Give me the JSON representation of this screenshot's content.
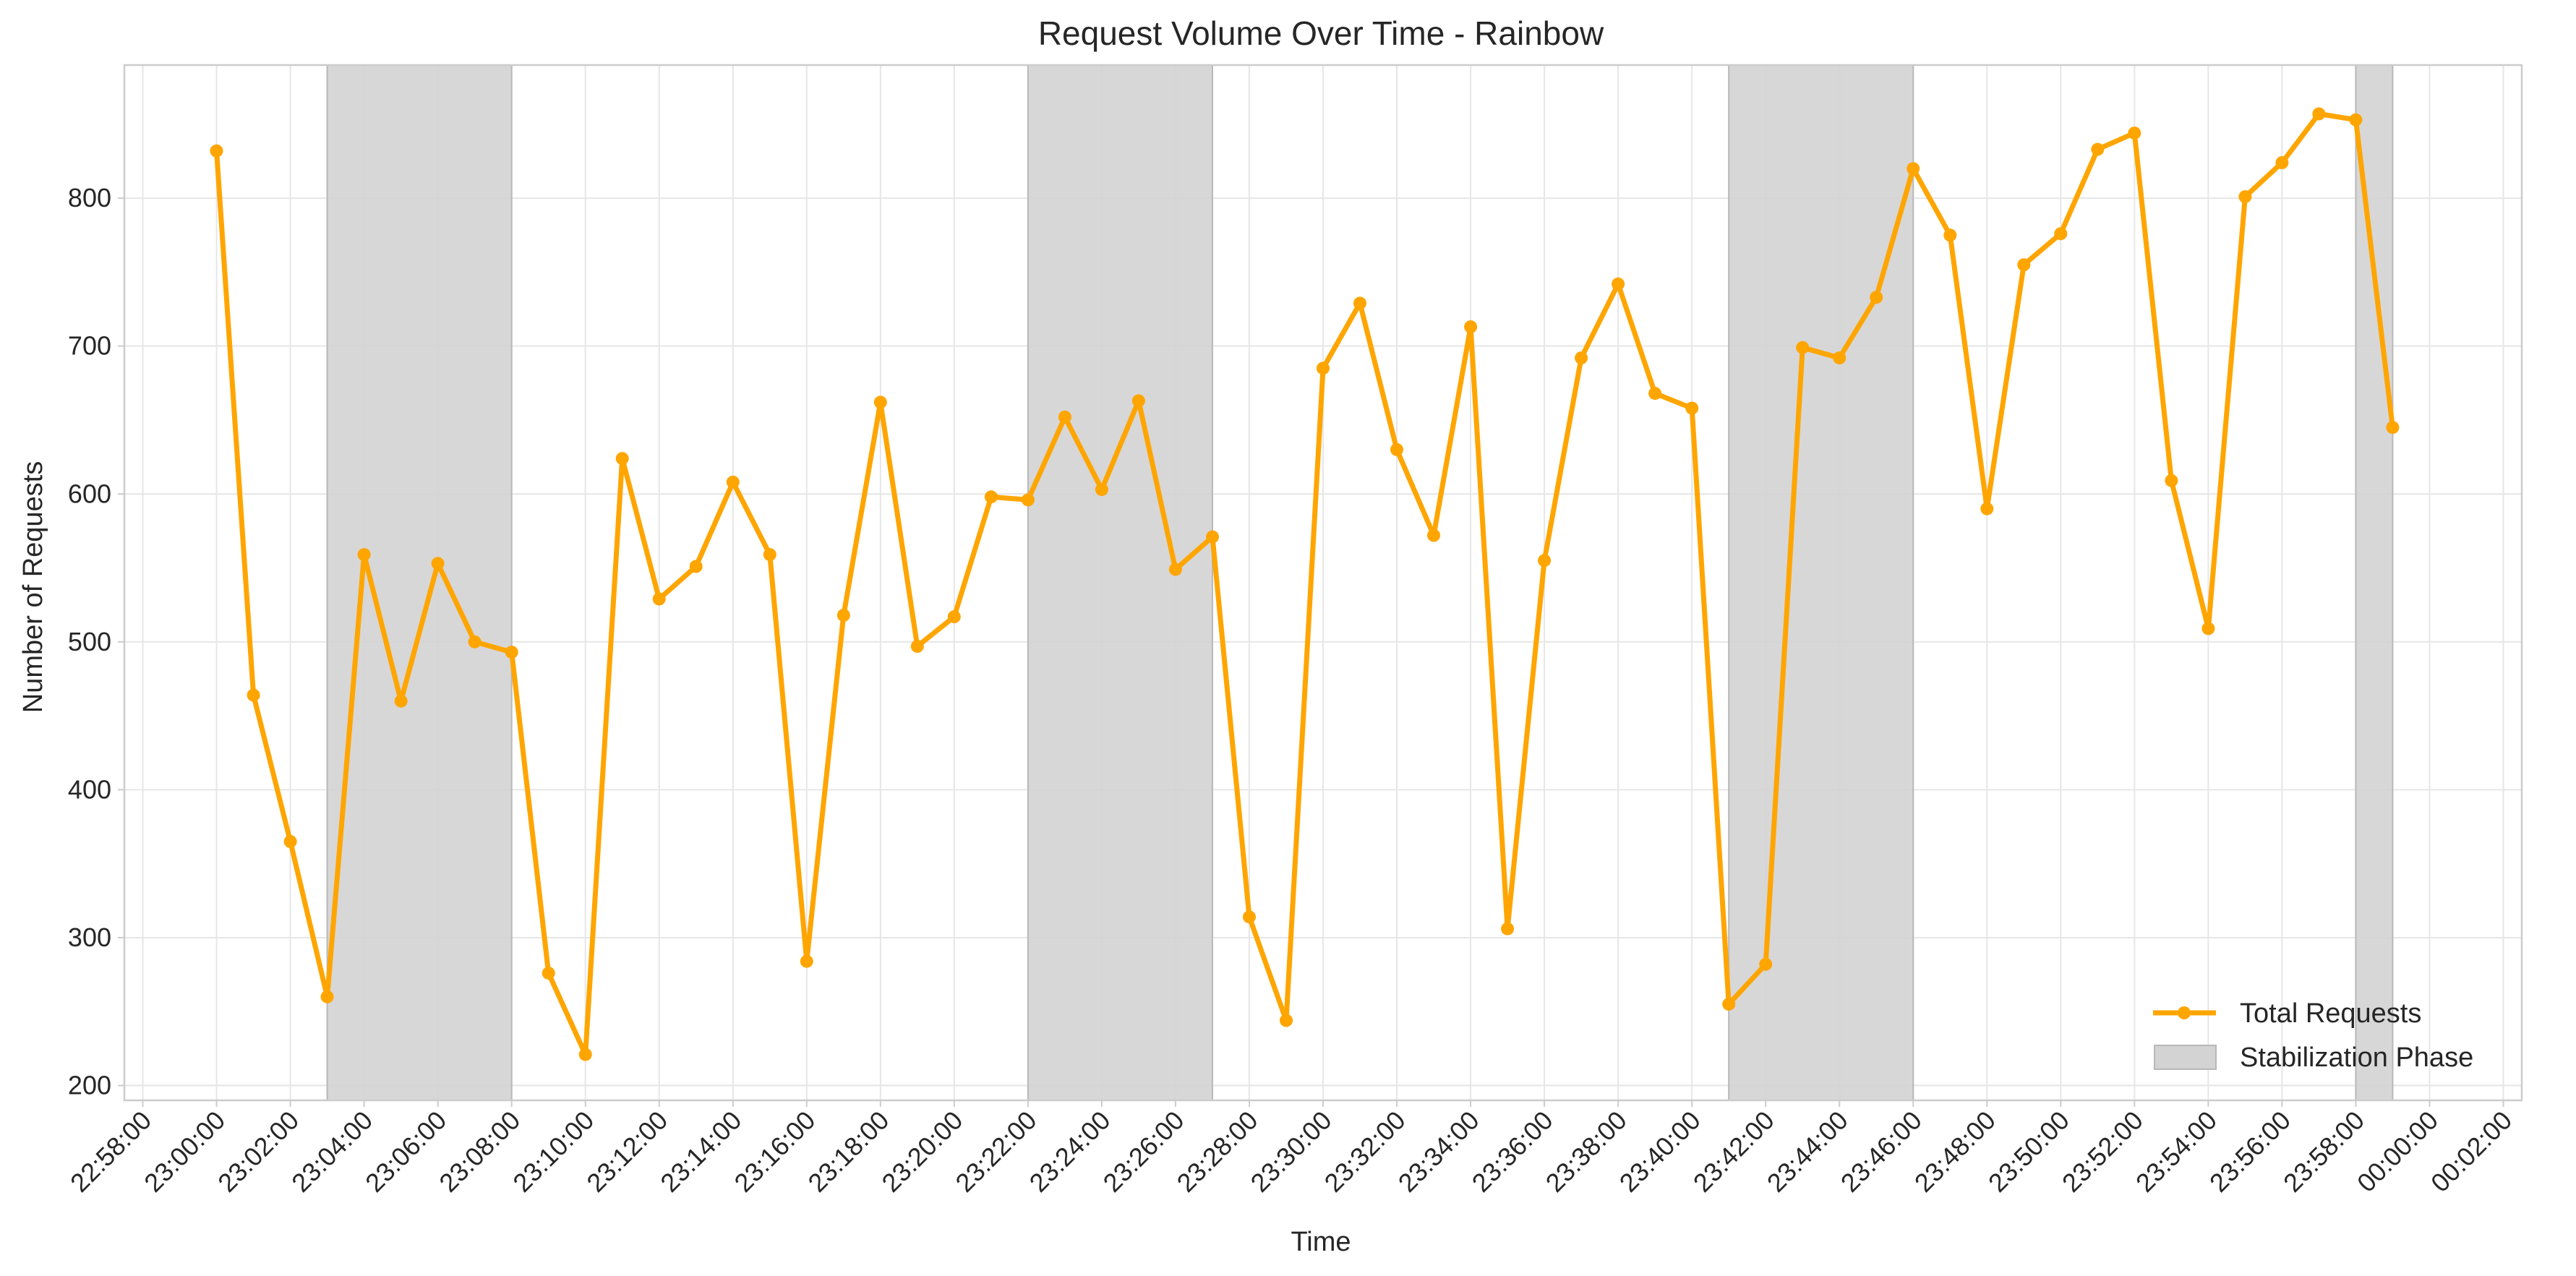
{
  "chart_data": {
    "type": "line",
    "title": "Request Volume Over Time - Rainbow",
    "xlabel": "Time",
    "ylabel": "Number of Requests",
    "x_start": "23:00:00",
    "x_step_minutes": 1,
    "xlim": [
      "22:57:30",
      "00:02:30"
    ],
    "ylim": [
      190,
      890
    ],
    "grid": true,
    "legend_position": "lower-right",
    "x_ticks": [
      "22:58:00",
      "23:00:00",
      "23:02:00",
      "23:04:00",
      "23:06:00",
      "23:08:00",
      "23:10:00",
      "23:12:00",
      "23:14:00",
      "23:16:00",
      "23:18:00",
      "23:20:00",
      "23:22:00",
      "23:24:00",
      "23:26:00",
      "23:28:00",
      "23:30:00",
      "23:32:00",
      "23:34:00",
      "23:36:00",
      "23:38:00",
      "23:40:00",
      "23:42:00",
      "23:44:00",
      "23:46:00",
      "23:48:00",
      "23:50:00",
      "23:52:00",
      "23:54:00",
      "23:56:00",
      "23:58:00",
      "00:00:00",
      "00:02:00"
    ],
    "y_ticks": [
      200,
      300,
      400,
      500,
      600,
      700,
      800
    ],
    "series": [
      {
        "name": "Total Requests",
        "color": "#FFA500",
        "values": [
          832,
          464,
          365,
          260,
          559,
          460,
          553,
          500,
          493,
          276,
          221,
          624,
          529,
          551,
          608,
          559,
          284,
          518,
          662,
          497,
          517,
          598,
          596,
          652,
          603,
          663,
          549,
          571,
          314,
          244,
          685,
          729,
          630,
          572,
          713,
          306,
          555,
          692,
          742,
          668,
          658,
          255,
          282,
          699,
          692,
          733,
          820,
          775,
          590,
          755,
          776,
          833,
          844,
          609,
          509,
          801,
          824,
          857,
          853,
          645
        ]
      }
    ],
    "shaded_regions": {
      "name": "Stabilization Phase",
      "color": "#D3D3D3",
      "ranges": [
        [
          "23:03:00",
          "23:08:00"
        ],
        [
          "23:22:00",
          "23:27:00"
        ],
        [
          "23:41:00",
          "23:46:00"
        ],
        [
          "23:58:00",
          "23:59:00"
        ]
      ]
    }
  }
}
